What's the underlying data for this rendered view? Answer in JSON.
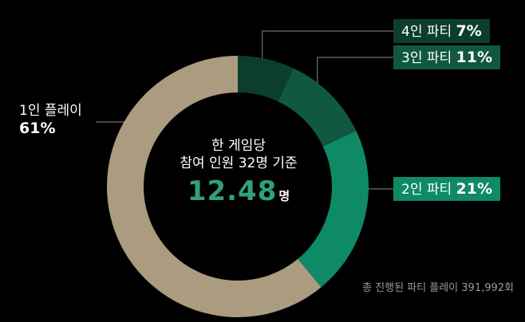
{
  "chart_data": {
    "type": "pie",
    "donut": true,
    "categories": [
      "1인 플레이",
      "2인 파티",
      "3인 파티",
      "4인 파티"
    ],
    "values": [
      61,
      21,
      11,
      7
    ],
    "value_labels": [
      "61%",
      "21%",
      "11%",
      "7%"
    ],
    "colors": [
      "#ab9c7f",
      "#0e8a66",
      "#10583f",
      "#0c3d2e"
    ],
    "center_text": {
      "line1": "한 게임당",
      "line2": "참여 인원 32명 기준",
      "value": "12.48",
      "unit": "명"
    },
    "footnote": "총 진행된 파티 플레이 391,992회"
  }
}
